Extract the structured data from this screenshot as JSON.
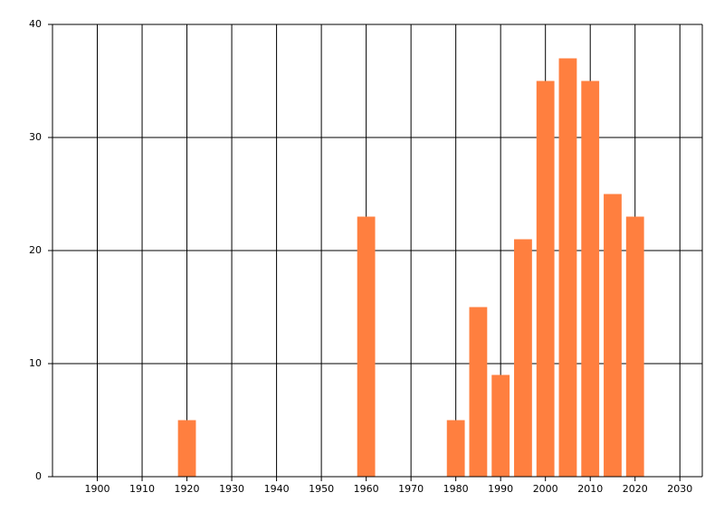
{
  "chart_data": {
    "type": "bar",
    "x": [
      1920,
      1960,
      1980,
      1985,
      1990,
      1995,
      2000,
      2005,
      2010,
      2015,
      2020
    ],
    "values": [
      5,
      23,
      5,
      15,
      9,
      21,
      35,
      37,
      35,
      25,
      23
    ],
    "color": "#ff7f3f",
    "xlim": [
      1890,
      2035
    ],
    "xticks": [
      1900,
      1910,
      1920,
      1930,
      1940,
      1950,
      1960,
      1970,
      1980,
      1990,
      2000,
      2010,
      2020,
      2030
    ],
    "ylim": [
      0,
      40
    ],
    "yticks": [
      0,
      10,
      20,
      30,
      40
    ],
    "grid": true
  }
}
